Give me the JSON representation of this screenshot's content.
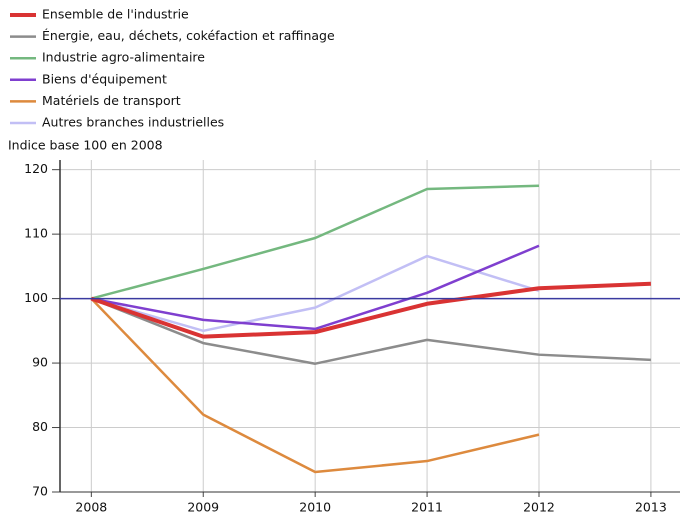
{
  "chart_data": {
    "type": "line",
    "y_label": "Indice base 100 en 2008",
    "x": [
      2008,
      2009,
      2010,
      2011,
      2012,
      2013
    ],
    "series": [
      {
        "name": "Ensemble de l'industrie",
        "color": "#d93333",
        "width": 4,
        "values": [
          100,
          94.1,
          94.8,
          99.2,
          101.6,
          102.3
        ]
      },
      {
        "name": "Énergie, eau, déchets, cokéfaction et raffinage",
        "color": "#8c8c8c",
        "width": 2.5,
        "values": [
          100,
          93.1,
          89.9,
          93.6,
          91.3,
          90.5
        ]
      },
      {
        "name": "Industrie agro-alimentaire",
        "color": "#74b87f",
        "width": 2.5,
        "values": [
          100,
          104.6,
          109.4,
          117.0,
          117.5,
          null
        ]
      },
      {
        "name": "Biens d'équipement",
        "color": "#7f3fcf",
        "width": 2.5,
        "values": [
          100,
          96.7,
          95.3,
          100.9,
          108.2,
          null
        ]
      },
      {
        "name": "Matériels de transport",
        "color": "#dd8a3e",
        "width": 2.5,
        "values": [
          100,
          82.0,
          73.1,
          74.8,
          78.9,
          null
        ]
      },
      {
        "name": "Autres branches industrielles",
        "color": "#c2bff5",
        "width": 2.5,
        "values": [
          100,
          95.0,
          98.6,
          106.6,
          101.2,
          null
        ]
      }
    ],
    "xlim": [
      2007.72,
      2013.26
    ],
    "xticks": [
      2008,
      2009,
      2010,
      2011,
      2012,
      2013
    ],
    "ylim": [
      70,
      121.5
    ],
    "yticks": [
      70,
      80,
      90,
      100,
      110,
      120
    ],
    "grid": true,
    "reference_line": {
      "value": 100,
      "color": "#3a3aa0"
    },
    "legend": "top-left"
  }
}
